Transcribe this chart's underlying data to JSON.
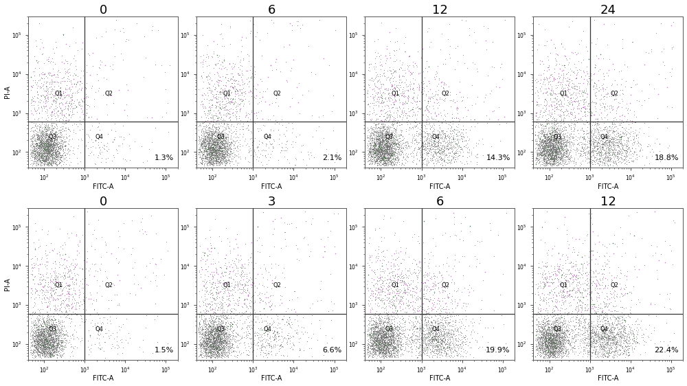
{
  "rows": 2,
  "cols": 4,
  "row1_titles": [
    "0",
    "6",
    "12",
    "24"
  ],
  "row2_titles": [
    "0",
    "3",
    "6",
    "12"
  ],
  "percentages": [
    [
      "1.3%",
      "2.1%",
      "14.3%",
      "18.8%"
    ],
    [
      "1.5%",
      "6.6%",
      "19.9%",
      "22.4%"
    ]
  ],
  "xlabel": "FITC-A",
  "ylabel": "PI-A",
  "gate_x_log": 3.0,
  "gate_y_log": 2.78,
  "xlim": [
    40,
    200000
  ],
  "ylim": [
    40,
    300000
  ],
  "bg_color": "#ffffff",
  "border_color": "#555555",
  "gate_color": "#333333",
  "quadrant_label_fontsize": 6,
  "title_fontsize": 13,
  "pct_fontsize": 8,
  "axis_label_fontsize": 7,
  "tick_fontsize": 5.5
}
